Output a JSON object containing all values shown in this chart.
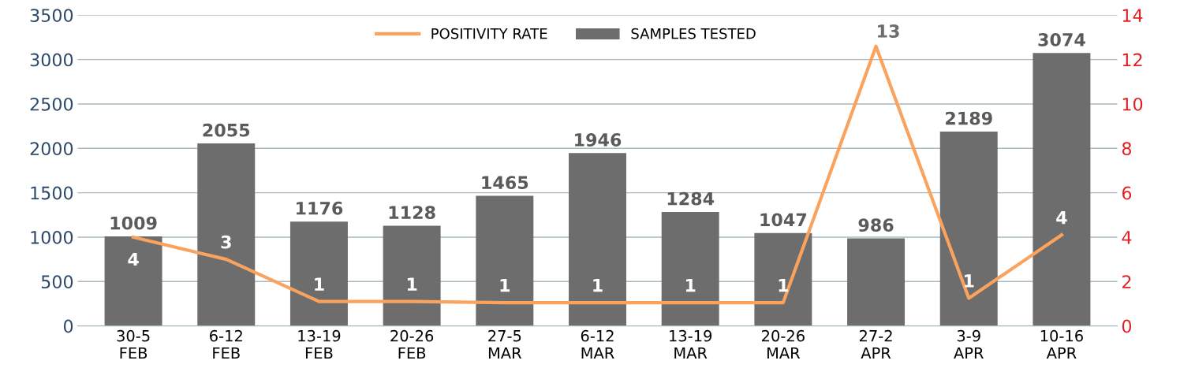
{
  "chart_data": {
    "type": "bar",
    "categories": [
      "30-5\nFEB",
      "6-12\nFEB",
      "13-19\nFEB",
      "20-26\nFEB",
      "27-5\nMAR",
      "6-12\nMAR",
      "13-19\nMAR",
      "20-26\nMAR",
      "27-2\nAPR",
      "3-9\nAPR",
      "10-16\nAPR"
    ],
    "series": [
      {
        "name": "SAMPLES TESTED",
        "color": "#6d6d6d",
        "values": [
          1009,
          2055,
          1176,
          1128,
          1465,
          1946,
          1284,
          1047,
          986,
          2189,
          3074
        ],
        "data_labels": true
      },
      {
        "name": "POSITIVITY RATE",
        "type": "line",
        "axis": "y2",
        "color": "#f9a35e",
        "values": [
          4.0,
          3.0,
          1.1,
          1.1,
          1.05,
          1.05,
          1.05,
          1.05,
          12.6,
          1.25,
          4.1
        ],
        "value_labels": [
          "4",
          "3",
          "1",
          "1",
          "1",
          "1",
          "1",
          "1",
          "13",
          "1",
          "4"
        ]
      }
    ],
    "ylim": [
      0,
      3500
    ],
    "yticks": [
      0,
      500,
      1000,
      1500,
      2000,
      2500,
      3000,
      3500
    ],
    "y2lim": [
      0,
      14
    ],
    "y2ticks": [
      0,
      2,
      4,
      6,
      8,
      10,
      12,
      14
    ],
    "grid": "y",
    "legend": "top",
    "marker": "none",
    "line_style": "solid"
  }
}
